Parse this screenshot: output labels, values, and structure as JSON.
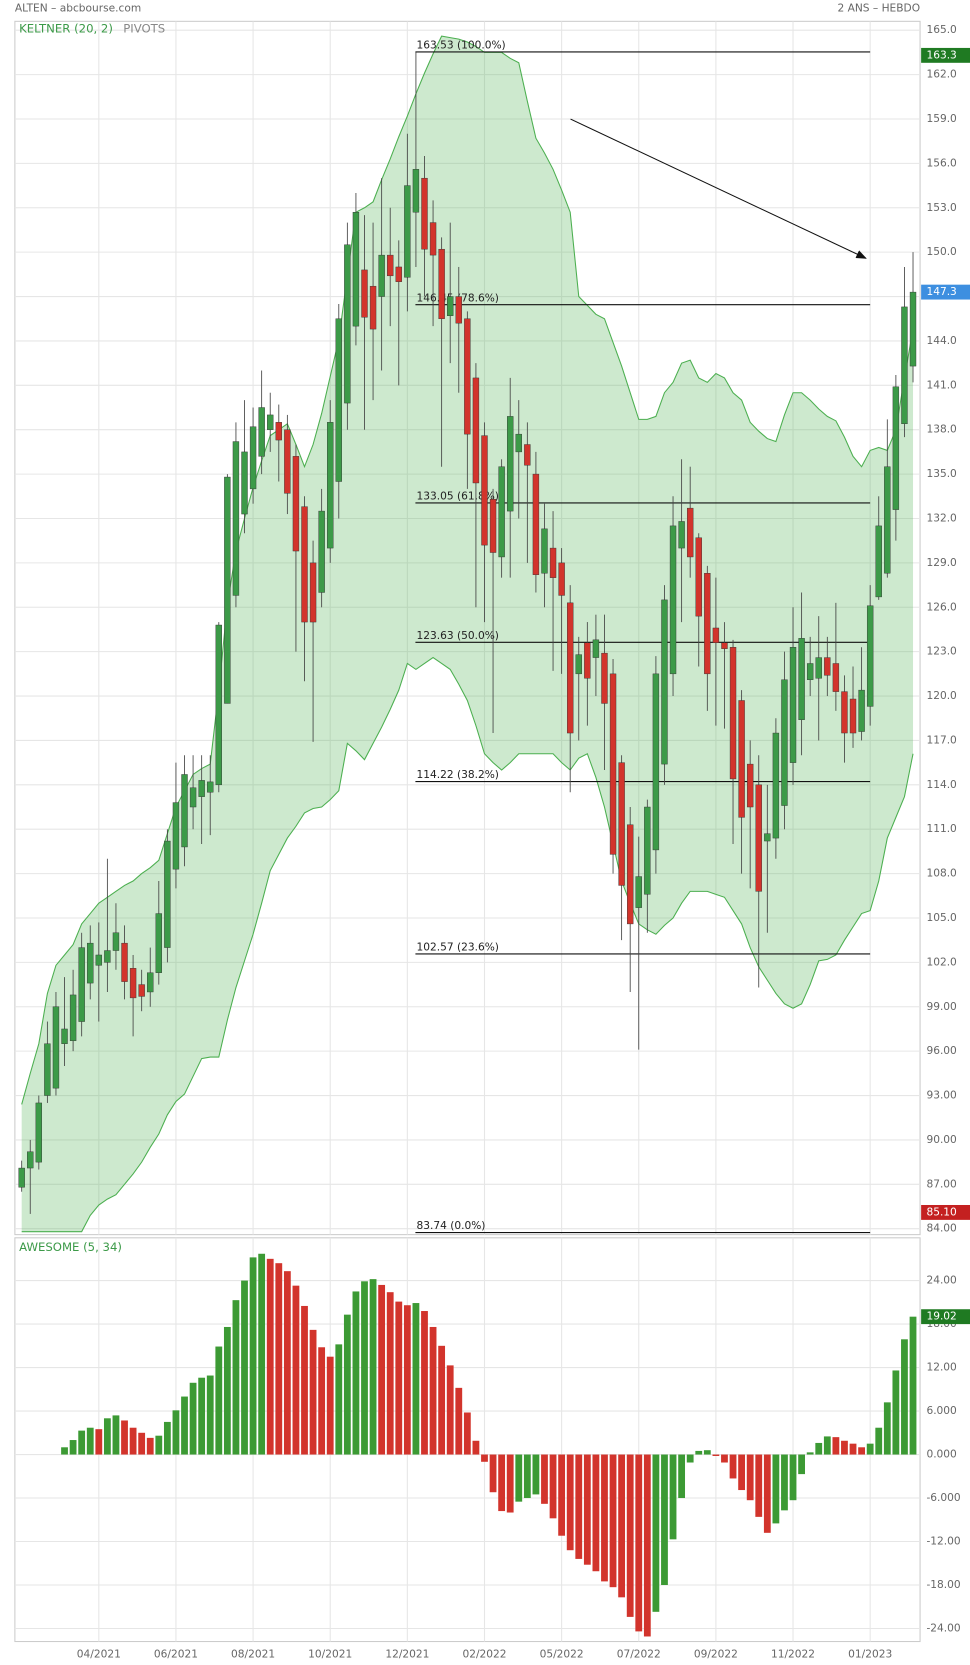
{
  "header": {
    "title": "ALTEN – abcbourse.com",
    "period": "2 ANS – HEBDO"
  },
  "chart_data": [
    {
      "type": "candlestick",
      "indicators": [
        "KELTNER (20, 2)",
        "PIVOTS"
      ],
      "categories": [
        null,
        null,
        null,
        null,
        null,
        null,
        null,
        null,
        null,
        "04/2021",
        null,
        null,
        null,
        null,
        null,
        null,
        null,
        null,
        "06/2021",
        null,
        null,
        null,
        null,
        null,
        null,
        null,
        null,
        "08/2021",
        null,
        null,
        null,
        null,
        null,
        null,
        null,
        null,
        "10/2021",
        null,
        null,
        null,
        null,
        null,
        null,
        null,
        null,
        "12/2021",
        null,
        null,
        null,
        null,
        null,
        null,
        null,
        null,
        "02/2022",
        null,
        null,
        null,
        null,
        null,
        null,
        null,
        null,
        "05/2022",
        null,
        null,
        null,
        null,
        null,
        null,
        null,
        null,
        "07/2022",
        null,
        null,
        null,
        null,
        null,
        null,
        null,
        null,
        "09/2022",
        null,
        null,
        null,
        null,
        null,
        null,
        null,
        null,
        "11/2022",
        null,
        null,
        null,
        null,
        null,
        null,
        null,
        null,
        "01/2023",
        null,
        null,
        null,
        null,
        null
      ],
      "open": [
        86.8,
        88.1,
        88.5,
        93,
        93.5,
        96.5,
        96.7,
        98,
        100.6,
        101.8,
        102,
        102.8,
        103.3,
        101.6,
        100.5,
        100,
        101.3,
        103,
        108.3,
        109.8,
        112.5,
        113.2,
        113.5,
        114,
        119.5,
        126.8,
        132.3,
        134,
        136.2,
        138,
        138.5,
        138,
        136.2,
        132.8,
        129,
        127,
        130,
        134.5,
        139.8,
        145,
        148.8,
        147.7,
        147,
        149.8,
        149,
        148.3,
        152.7,
        155,
        152,
        150.2,
        145.7,
        147,
        145.5,
        141.5,
        137.6,
        133.3,
        129.4,
        132.5,
        136.5,
        137,
        135,
        128.3,
        130,
        129,
        126.3,
        121.5,
        123.6,
        122.6,
        122.9,
        121.5,
        115.5,
        111.3,
        105.7,
        106.6,
        109.6,
        115.4,
        121.5,
        130,
        132.7,
        130.7,
        128.3,
        124.6,
        123.6,
        123.3,
        119.7,
        115.4,
        114,
        110.2,
        110.4,
        112.6,
        115.5,
        118.4,
        121.1,
        121.2,
        122.6,
        122.2,
        120.3,
        119.8,
        117.6,
        119.3,
        126.7,
        128.3,
        132.6,
        138.4,
        142.3
      ],
      "high": [
        88.6,
        90,
        93,
        98,
        100,
        101,
        101.5,
        104,
        104.5,
        104.7,
        109,
        106,
        104.5,
        102.5,
        101.5,
        103,
        107.5,
        111,
        115.5,
        116,
        116,
        116,
        116,
        125,
        135,
        138.5,
        140,
        139.5,
        142,
        140.5,
        139.7,
        139,
        137,
        133.5,
        130.5,
        134,
        140,
        146.5,
        152,
        154,
        152.5,
        152,
        155,
        153,
        150.8,
        158,
        163.5,
        156.5,
        153.5,
        151,
        152,
        149,
        146,
        142.5,
        138.5,
        134,
        136,
        141.5,
        140,
        138.5,
        136.5,
        133,
        132.5,
        130,
        127.5,
        124,
        125,
        125.5,
        125.5,
        122.5,
        116,
        112.5,
        110.5,
        113,
        122.7,
        127.5,
        133.5,
        136,
        135.5,
        131,
        128.8,
        128,
        125,
        123.8,
        120.4,
        117,
        116,
        114,
        118.5,
        123,
        126,
        127,
        124,
        125.4,
        124,
        126.3,
        121.4,
        122,
        123.3,
        127.5,
        133.5,
        138.7,
        141.7,
        149,
        150
      ],
      "low": [
        86.5,
        85,
        88,
        92.5,
        93,
        95,
        96,
        97,
        99.5,
        98,
        100,
        101.5,
        99.5,
        97,
        98.7,
        99,
        100.5,
        102,
        107,
        108.5,
        111,
        110,
        110.6,
        113.5,
        119.5,
        126,
        131,
        133,
        135,
        136.5,
        134.5,
        132.3,
        123,
        121,
        116.9,
        126,
        129,
        132,
        138,
        143.7,
        138,
        140,
        142,
        145,
        141,
        146,
        149,
        147,
        145,
        135.5,
        142.5,
        140.5,
        134,
        126,
        125,
        117.5,
        128,
        128,
        132,
        129,
        127,
        126,
        121.7,
        121.5,
        113.5,
        117,
        118,
        120,
        115,
        108,
        103.5,
        100,
        96.1,
        104,
        108,
        114,
        120,
        125,
        128,
        122,
        119,
        118,
        117.8,
        110,
        108,
        107,
        100.3,
        104,
        109,
        111,
        114,
        116,
        120,
        117,
        120,
        119,
        115.5,
        116.5,
        117,
        118,
        126.5,
        128,
        130.5,
        137.5,
        141.2
      ],
      "close": [
        88.1,
        89.2,
        92.5,
        96.5,
        99,
        97.5,
        99.8,
        103,
        103.3,
        102.5,
        102.8,
        104,
        100.7,
        99.6,
        99.7,
        101.3,
        105.3,
        110.2,
        112.8,
        114.7,
        113.8,
        114.3,
        114.2,
        124.8,
        134.8,
        137.2,
        136.5,
        138.2,
        139.5,
        139,
        137.3,
        133.7,
        129.8,
        125,
        125,
        132.5,
        138.5,
        145.5,
        150.5,
        152.7,
        145.6,
        144.8,
        149.8,
        148.4,
        148,
        154.5,
        155.6,
        150.2,
        149.8,
        145.5,
        147,
        145.2,
        137.7,
        134.4,
        130.2,
        129.7,
        135.5,
        138.9,
        137.7,
        135.6,
        128.2,
        131.3,
        128,
        126.8,
        117.5,
        122.8,
        121.2,
        123.8,
        119.5,
        109.3,
        107.2,
        104.6,
        107.8,
        112.5,
        121.5,
        126.5,
        131.5,
        131.8,
        129.4,
        125.4,
        121.5,
        123.6,
        123.2,
        114.4,
        111.8,
        112.5,
        106.8,
        110.7,
        117.5,
        121.1,
        123.3,
        123.9,
        122.2,
        122.6,
        121.4,
        120.3,
        117.5,
        117.5,
        120.4,
        126.1,
        131.5,
        135.5,
        140.9,
        146.3,
        147.3
      ],
      "keltner_upper": [
        92.4,
        94.5,
        96.5,
        99.9,
        101.8,
        102.5,
        103.2,
        104.6,
        105.3,
        106.0,
        106.4,
        106.8,
        107.2,
        107.5,
        108,
        108.4,
        108.9,
        110.7,
        112.5,
        113.6,
        114.7,
        115.1,
        115.4,
        120.4,
        126.2,
        129.8,
        132,
        134.1,
        135.9,
        137.6,
        138.0,
        138.4,
        137,
        135.5,
        137,
        139.1,
        141.6,
        144.1,
        148.4,
        152.7,
        153,
        153.4,
        154.9,
        156.3,
        157.8,
        159.2,
        160.7,
        162.1,
        163.4,
        164.6,
        164.5,
        164.4,
        164.2,
        163.9,
        163.5,
        163.5,
        163.5,
        163.1,
        162.8,
        160.2,
        157.7,
        156.7,
        155.6,
        154.2,
        152.7,
        147.0,
        146.4,
        145.8,
        145.5,
        143.9,
        142.3,
        140.5,
        138.7,
        138.7,
        138.9,
        140.5,
        141.2,
        142.5,
        142.7,
        141.5,
        141.2,
        141.8,
        141.5,
        140.5,
        140.0,
        138.5,
        137.9,
        137.4,
        137.2,
        139.0,
        140.5,
        140.5,
        140,
        139.4,
        138.9,
        138.6,
        137.5,
        136.2,
        135.5,
        136.6,
        136.8,
        136.6,
        138.0,
        141.5,
        144.8
      ],
      "keltner_lower": [
        83.8,
        83.8,
        83.8,
        83.8,
        83.8,
        83.8,
        83.8,
        83.8,
        84.9,
        85.6,
        86,
        86.3,
        87,
        87.7,
        88.5,
        89.5,
        90.4,
        91.7,
        92.6,
        93.1,
        94.3,
        95.5,
        95.6,
        95.6,
        98.1,
        100.3,
        102.1,
        103.9,
        106,
        108.2,
        109.3,
        110.4,
        111.2,
        112.1,
        112.4,
        112.5,
        113,
        113.6,
        116.8,
        116.3,
        115.7,
        116.8,
        117.9,
        119.1,
        120.4,
        122.2,
        121.8,
        122.2,
        122.6,
        122.2,
        121.8,
        120.8,
        119.7,
        118,
        116.1,
        115.5,
        115.0,
        115.5,
        116.1,
        116.1,
        116.1,
        116.1,
        116.1,
        115.5,
        115.0,
        115.8,
        116.1,
        114.5,
        112.5,
        110,
        107.5,
        106,
        104.6,
        104.2,
        103.9,
        104.5,
        105.0,
        106,
        106.8,
        106.8,
        106.8,
        106.6,
        106.4,
        105.5,
        104.6,
        103,
        101.7,
        100.8,
        99.9,
        99.2,
        98.9,
        99.2,
        100.5,
        102.1,
        102.2,
        102.5,
        103.5,
        104.4,
        105.3,
        105.5,
        107.5,
        110.4,
        111.8,
        113.2,
        116.1
      ],
      "up_color": "#3c9a48",
      "down_color": "#d2342c",
      "band_color": "#4caf50",
      "ylim": [
        83.6,
        165.6
      ],
      "yticks": [
        {
          "value": 84,
          "label": "84.00"
        },
        {
          "value": 87,
          "label": "87.00"
        },
        {
          "value": 90,
          "label": "90.00"
        },
        {
          "value": 93,
          "label": "93.00"
        },
        {
          "value": 96,
          "label": "96.00"
        },
        {
          "value": 99,
          "label": "99.00"
        },
        {
          "value": 102,
          "label": "102.0"
        },
        {
          "value": 105,
          "label": "105.0"
        },
        {
          "value": 108,
          "label": "108.0"
        },
        {
          "value": 111,
          "label": "111.0"
        },
        {
          "value": 114,
          "label": "114.0"
        },
        {
          "value": 117,
          "label": "117.0"
        },
        {
          "value": 120,
          "label": "120.0"
        },
        {
          "value": 123,
          "label": "123.0"
        },
        {
          "value": 126,
          "label": "126.0"
        },
        {
          "value": 129,
          "label": "129.0"
        },
        {
          "value": 132,
          "label": "132.0"
        },
        {
          "value": 135,
          "label": "135.0"
        },
        {
          "value": 138,
          "label": "138.0"
        },
        {
          "value": 141,
          "label": "141.0"
        },
        {
          "value": 144,
          "label": "144.0"
        },
        {
          "value": 147,
          "label": "147.0"
        },
        {
          "value": 150,
          "label": "150.0"
        },
        {
          "value": 153,
          "label": "153.0"
        },
        {
          "value": 156,
          "label": "156.0"
        },
        {
          "value": 159,
          "label": "159.0"
        },
        {
          "value": 162,
          "label": "162.0"
        },
        {
          "value": 165,
          "label": "165.0"
        }
      ],
      "levels": [
        {
          "value": 163.53,
          "label": "163.53  (100.0%)"
        },
        {
          "value": 146.45,
          "label": "146.45  (78.6%)"
        },
        {
          "value": 133.05,
          "label": "133.05  (61.8%)"
        },
        {
          "value": 123.63,
          "label": "123.63  (50.0%)"
        },
        {
          "value": 114.22,
          "label": "114.22  (38.2%)"
        },
        {
          "value": 102.57,
          "label": "102.57  (23.6%)"
        },
        {
          "value": 83.74,
          "label": "83.74  (0.0%)"
        }
      ],
      "markers": [
        {
          "value": 163.3,
          "label": "163.3",
          "color": "#1f7a22"
        },
        {
          "value": 147.3,
          "label": "147.3",
          "color": "#3d8fe0"
        },
        {
          "value": 85.1,
          "label": "85.10",
          "color": "#c42020"
        }
      ],
      "grid": true
    },
    {
      "type": "bar",
      "title": "AWESOME (5, 34)",
      "values": [
        null,
        null,
        null,
        null,
        null,
        1.0,
        2.0,
        3.3,
        3.7,
        3.5,
        5.0,
        5.4,
        4.7,
        3.7,
        3.0,
        2.3,
        2.6,
        4.5,
        6.1,
        8.0,
        9.9,
        10.6,
        10.9,
        14.9,
        17.6,
        21.3,
        24.0,
        27.2,
        27.7,
        27.0,
        26.4,
        25.3,
        23.3,
        20.5,
        17.2,
        14.8,
        13.5,
        15.2,
        19.3,
        22.5,
        23.9,
        24.2,
        23.4,
        22.4,
        21.1,
        20.6,
        20.9,
        19.8,
        17.6,
        15.0,
        12.3,
        9.2,
        5.8,
        1.9,
        -1.0,
        -5.2,
        -7.8,
        -8.0,
        -6.5,
        -6.0,
        -5.5,
        -6.8,
        -8.8,
        -11.2,
        -13.2,
        -14.4,
        -15.2,
        -16.1,
        -17.5,
        -18.3,
        -19.7,
        -22.4,
        -24.4,
        -25.1,
        -21.7,
        -18.0,
        -11.7,
        -6.0,
        -1.1,
        0.5,
        0.6,
        -0.2,
        -1.1,
        -3.3,
        -4.9,
        -6.3,
        -8.6,
        -10.8,
        -9.5,
        -7.7,
        -6.3,
        -2.7,
        0.3,
        1.6,
        2.5,
        2.4,
        1.9,
        1.5,
        1.0,
        1.5,
        3.7,
        7.2,
        11.6,
        15.9,
        19.02
      ],
      "up_color": "#3c9a34",
      "down_color": "#d2342c",
      "ylim": [
        -25.8,
        29.9
      ],
      "yticks": [
        {
          "value": -24,
          "label": "-24.00"
        },
        {
          "value": -18,
          "label": "-18.00"
        },
        {
          "value": -12,
          "label": "-12.00"
        },
        {
          "value": -6,
          "label": "-6.000"
        },
        {
          "value": 0,
          "label": "0.000"
        },
        {
          "value": 6,
          "label": "6.000"
        },
        {
          "value": 12,
          "label": "12.00"
        },
        {
          "value": 18,
          "label": "18.00"
        },
        {
          "value": 24,
          "label": "24.00"
        }
      ],
      "markers": [
        {
          "value": 19.02,
          "label": "19.02",
          "color": "#1f7a22"
        }
      ],
      "grid": true
    }
  ]
}
